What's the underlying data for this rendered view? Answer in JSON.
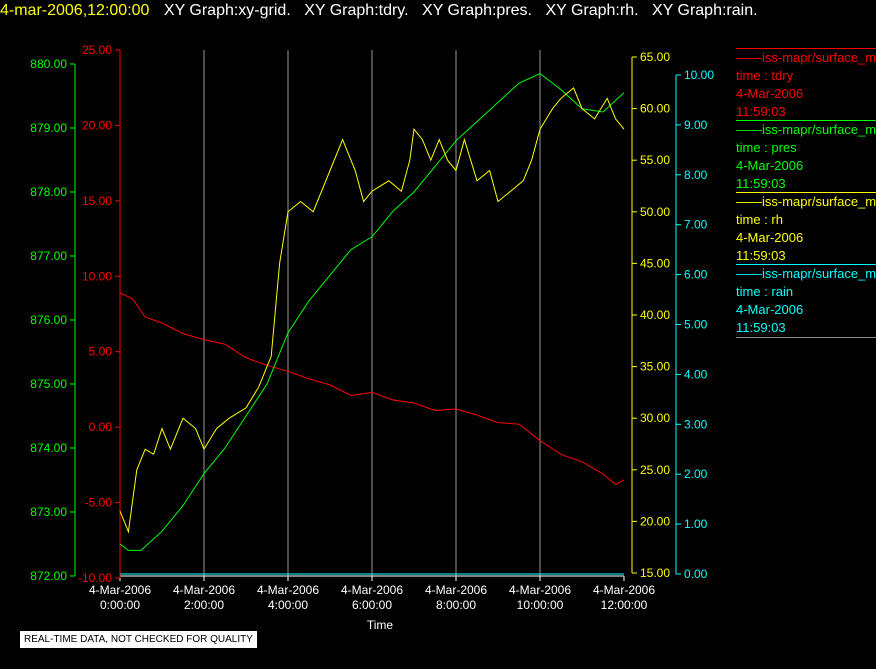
{
  "header": {
    "timestamp": "4-mar-2006,12:00:00",
    "graphs": [
      "XY Graph:xy-grid.",
      "XY Graph:tdry.",
      "XY Graph:pres.",
      "XY Graph:rh.",
      "XY Graph:rain."
    ]
  },
  "chart_data": {
    "type": "line",
    "xlabel": "Time",
    "x_ticks": [
      {
        "date": "4-Mar-2006",
        "time": "0:00:00"
      },
      {
        "date": "4-Mar-2006",
        "time": "2:00:00"
      },
      {
        "date": "4-Mar-2006",
        "time": "4:00:00"
      },
      {
        "date": "4-Mar-2006",
        "time": "6:00:00"
      },
      {
        "date": "4-Mar-2006",
        "time": "8:00:00"
      },
      {
        "date": "4-Mar-2006",
        "time": "10:00:00"
      },
      {
        "date": "4-Mar-2006",
        "time": "12:00:00"
      }
    ],
    "xlim_hours": [
      0,
      12
    ],
    "grid": "vertical",
    "axes": [
      {
        "id": "pres",
        "color": "#00ff00",
        "range": [
          872.0,
          880.0
        ],
        "ticks": [
          "872.00",
          "873.00",
          "874.00",
          "875.00",
          "876.00",
          "877.00",
          "878.00",
          "879.00",
          "880.00"
        ]
      },
      {
        "id": "tdry",
        "color": "#ff0000",
        "range": [
          -10.0,
          25.0
        ],
        "ticks": [
          "-10.00",
          "-5.00",
          "0.00",
          "5.00",
          "10.00",
          "15.00",
          "20.00",
          "25.00"
        ]
      },
      {
        "id": "rh",
        "color": "#ffff00",
        "range": [
          15.0,
          65.0
        ],
        "ticks": [
          "15.00",
          "20.00",
          "25.00",
          "30.00",
          "35.00",
          "40.00",
          "45.00",
          "50.00",
          "55.00",
          "60.00",
          "65.00"
        ]
      },
      {
        "id": "rain",
        "color": "#00ffff",
        "range": [
          0.0,
          10.0
        ],
        "ticks": [
          "0.00",
          "1.00",
          "2.00",
          "3.00",
          "4.00",
          "5.00",
          "6.00",
          "7.00",
          "8.00",
          "9.00",
          "10.00"
        ]
      }
    ],
    "series": [
      {
        "axis": "tdry",
        "color": "#ff0000",
        "points": [
          [
            0.0,
            8.9
          ],
          [
            0.3,
            8.5
          ],
          [
            0.6,
            7.3
          ],
          [
            1.0,
            6.9
          ],
          [
            1.5,
            6.2
          ],
          [
            2.0,
            5.8
          ],
          [
            2.5,
            5.5
          ],
          [
            3.0,
            4.6
          ],
          [
            3.5,
            4.1
          ],
          [
            4.0,
            3.7
          ],
          [
            4.5,
            3.2
          ],
          [
            5.0,
            2.8
          ],
          [
            5.5,
            2.1
          ],
          [
            6.0,
            2.3
          ],
          [
            6.5,
            1.8
          ],
          [
            7.0,
            1.6
          ],
          [
            7.5,
            1.1
          ],
          [
            8.0,
            1.2
          ],
          [
            8.5,
            0.8
          ],
          [
            9.0,
            0.3
          ],
          [
            9.5,
            0.2
          ],
          [
            10.0,
            -0.9
          ],
          [
            10.5,
            -1.8
          ],
          [
            11.0,
            -2.3
          ],
          [
            11.5,
            -3.1
          ],
          [
            11.8,
            -3.8
          ],
          [
            12.0,
            -3.5
          ]
        ]
      },
      {
        "axis": "pres",
        "color": "#00ff00",
        "points": [
          [
            0.0,
            872.5
          ],
          [
            0.2,
            872.4
          ],
          [
            0.5,
            872.4
          ],
          [
            1.0,
            872.7
          ],
          [
            1.5,
            873.1
          ],
          [
            2.0,
            873.6
          ],
          [
            2.5,
            874.0
          ],
          [
            3.0,
            874.5
          ],
          [
            3.5,
            875.0
          ],
          [
            4.0,
            875.8
          ],
          [
            4.5,
            876.3
          ],
          [
            5.0,
            876.7
          ],
          [
            5.5,
            877.1
          ],
          [
            6.0,
            877.3
          ],
          [
            6.5,
            877.7
          ],
          [
            7.0,
            878.0
          ],
          [
            7.5,
            878.4
          ],
          [
            8.0,
            878.8
          ],
          [
            8.5,
            879.1
          ],
          [
            9.0,
            879.4
          ],
          [
            9.5,
            879.7
          ],
          [
            10.0,
            879.85
          ],
          [
            10.5,
            879.6
          ],
          [
            11.0,
            879.3
          ],
          [
            11.5,
            879.25
          ],
          [
            12.0,
            879.55
          ]
        ]
      },
      {
        "axis": "rh",
        "color": "#ffff00",
        "points": [
          [
            0.0,
            21.0
          ],
          [
            0.2,
            19.0
          ],
          [
            0.4,
            25.0
          ],
          [
            0.6,
            27.0
          ],
          [
            0.8,
            26.5
          ],
          [
            1.0,
            29.0
          ],
          [
            1.2,
            27.0
          ],
          [
            1.5,
            30.0
          ],
          [
            1.8,
            29.0
          ],
          [
            2.0,
            27.0
          ],
          [
            2.3,
            29.0
          ],
          [
            2.6,
            30.0
          ],
          [
            3.0,
            31.0
          ],
          [
            3.3,
            33.0
          ],
          [
            3.6,
            36.0
          ],
          [
            3.8,
            45.0
          ],
          [
            4.0,
            50.0
          ],
          [
            4.3,
            51.0
          ],
          [
            4.6,
            50.0
          ],
          [
            5.0,
            54.0
          ],
          [
            5.3,
            57.0
          ],
          [
            5.6,
            54.0
          ],
          [
            5.8,
            51.0
          ],
          [
            6.0,
            52.0
          ],
          [
            6.4,
            53.0
          ],
          [
            6.7,
            52.0
          ],
          [
            6.9,
            55.0
          ],
          [
            7.0,
            58.0
          ],
          [
            7.2,
            57.0
          ],
          [
            7.4,
            55.0
          ],
          [
            7.6,
            57.0
          ],
          [
            7.8,
            55.0
          ],
          [
            8.0,
            54.0
          ],
          [
            8.2,
            57.0
          ],
          [
            8.5,
            53.0
          ],
          [
            8.8,
            54.0
          ],
          [
            9.0,
            51.0
          ],
          [
            9.3,
            52.0
          ],
          [
            9.6,
            53.0
          ],
          [
            9.8,
            55.0
          ],
          [
            10.0,
            58.0
          ],
          [
            10.3,
            60.0
          ],
          [
            10.5,
            61.0
          ],
          [
            10.8,
            62.0
          ],
          [
            11.0,
            60.0
          ],
          [
            11.3,
            59.0
          ],
          [
            11.6,
            61.0
          ],
          [
            11.8,
            59.0
          ],
          [
            12.0,
            58.0
          ]
        ]
      },
      {
        "axis": "rain",
        "color": "#00ffff",
        "points": [
          [
            0.0,
            0.0
          ],
          [
            12.0,
            0.0
          ]
        ]
      }
    ]
  },
  "legend": [
    {
      "name": "——iss-mapr/surface_m",
      "line": "time : tdry",
      "date": "4-Mar-2006",
      "time": "11:59:03",
      "color": "#ff0000"
    },
    {
      "name": "——iss-mapr/surface_m",
      "line": "time : pres",
      "date": "4-Mar-2006",
      "time": "11:59:03",
      "color": "#00ff00"
    },
    {
      "name": "——iss-mapr/surface_m",
      "line": "time : rh",
      "date": "4-Mar-2006",
      "time": "11:59:03",
      "color": "#ffff00"
    },
    {
      "name": "——iss-mapr/surface_m",
      "line": "time : rain",
      "date": "4-Mar-2006",
      "time": "11:59:03",
      "color": "#00ffff"
    }
  ],
  "footer": {
    "qc_note": "REAL-TIME DATA, NOT CHECKED FOR QUALITY"
  }
}
